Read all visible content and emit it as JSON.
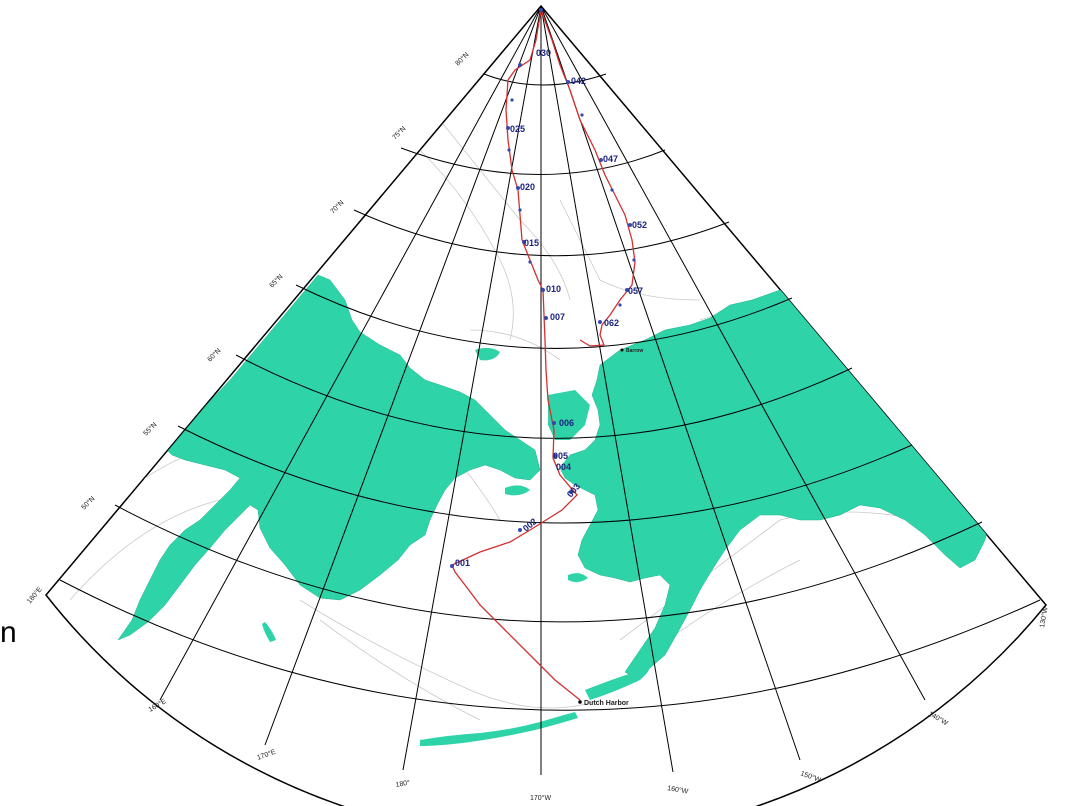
{
  "map": {
    "projection": "conic",
    "land_color": "#2fd3a8",
    "track_color": "#d32f2f",
    "station_color": "#1a237e",
    "grid_color": "#000000",
    "latitude_labels": [
      "80°N",
      "75°N",
      "70°N",
      "65°N",
      "60°N",
      "55°N",
      "50°N"
    ],
    "longitude_labels": [
      "180°E",
      "160°E",
      "170°E",
      "180°",
      "170°W",
      "160°W",
      "150°W",
      "140°W",
      "130°W"
    ],
    "stations": [
      "001",
      "002",
      "003",
      "004",
      "005",
      "006",
      "007",
      "010",
      "015",
      "020",
      "025",
      "030",
      "042",
      "047",
      "052",
      "057",
      "062"
    ],
    "places": [
      "Dutch Harbor",
      "Barrow"
    ],
    "side_label": "n"
  }
}
